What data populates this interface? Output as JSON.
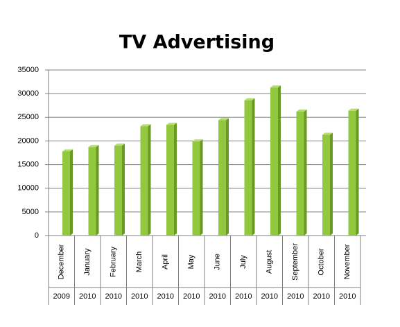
{
  "chart_data": {
    "type": "bar",
    "title": "TV Advertising",
    "categories": [
      "December",
      "January",
      "February",
      "March",
      "April",
      "May",
      "June",
      "July",
      "August",
      "September",
      "October",
      "November"
    ],
    "category_groups": [
      "2009",
      "2010",
      "2010",
      "2010",
      "2010",
      "2010",
      "2010",
      "2010",
      "2010",
      "2010",
      "2010",
      "2010"
    ],
    "values": [
      17800,
      18700,
      19000,
      23100,
      23400,
      19900,
      24400,
      28600,
      31300,
      26200,
      21300,
      26400
    ],
    "color": "#92c83e",
    "ylim": [
      0,
      35000
    ],
    "yticks": [
      0,
      5000,
      10000,
      15000,
      20000,
      25000,
      30000,
      35000
    ],
    "grid": true
  }
}
